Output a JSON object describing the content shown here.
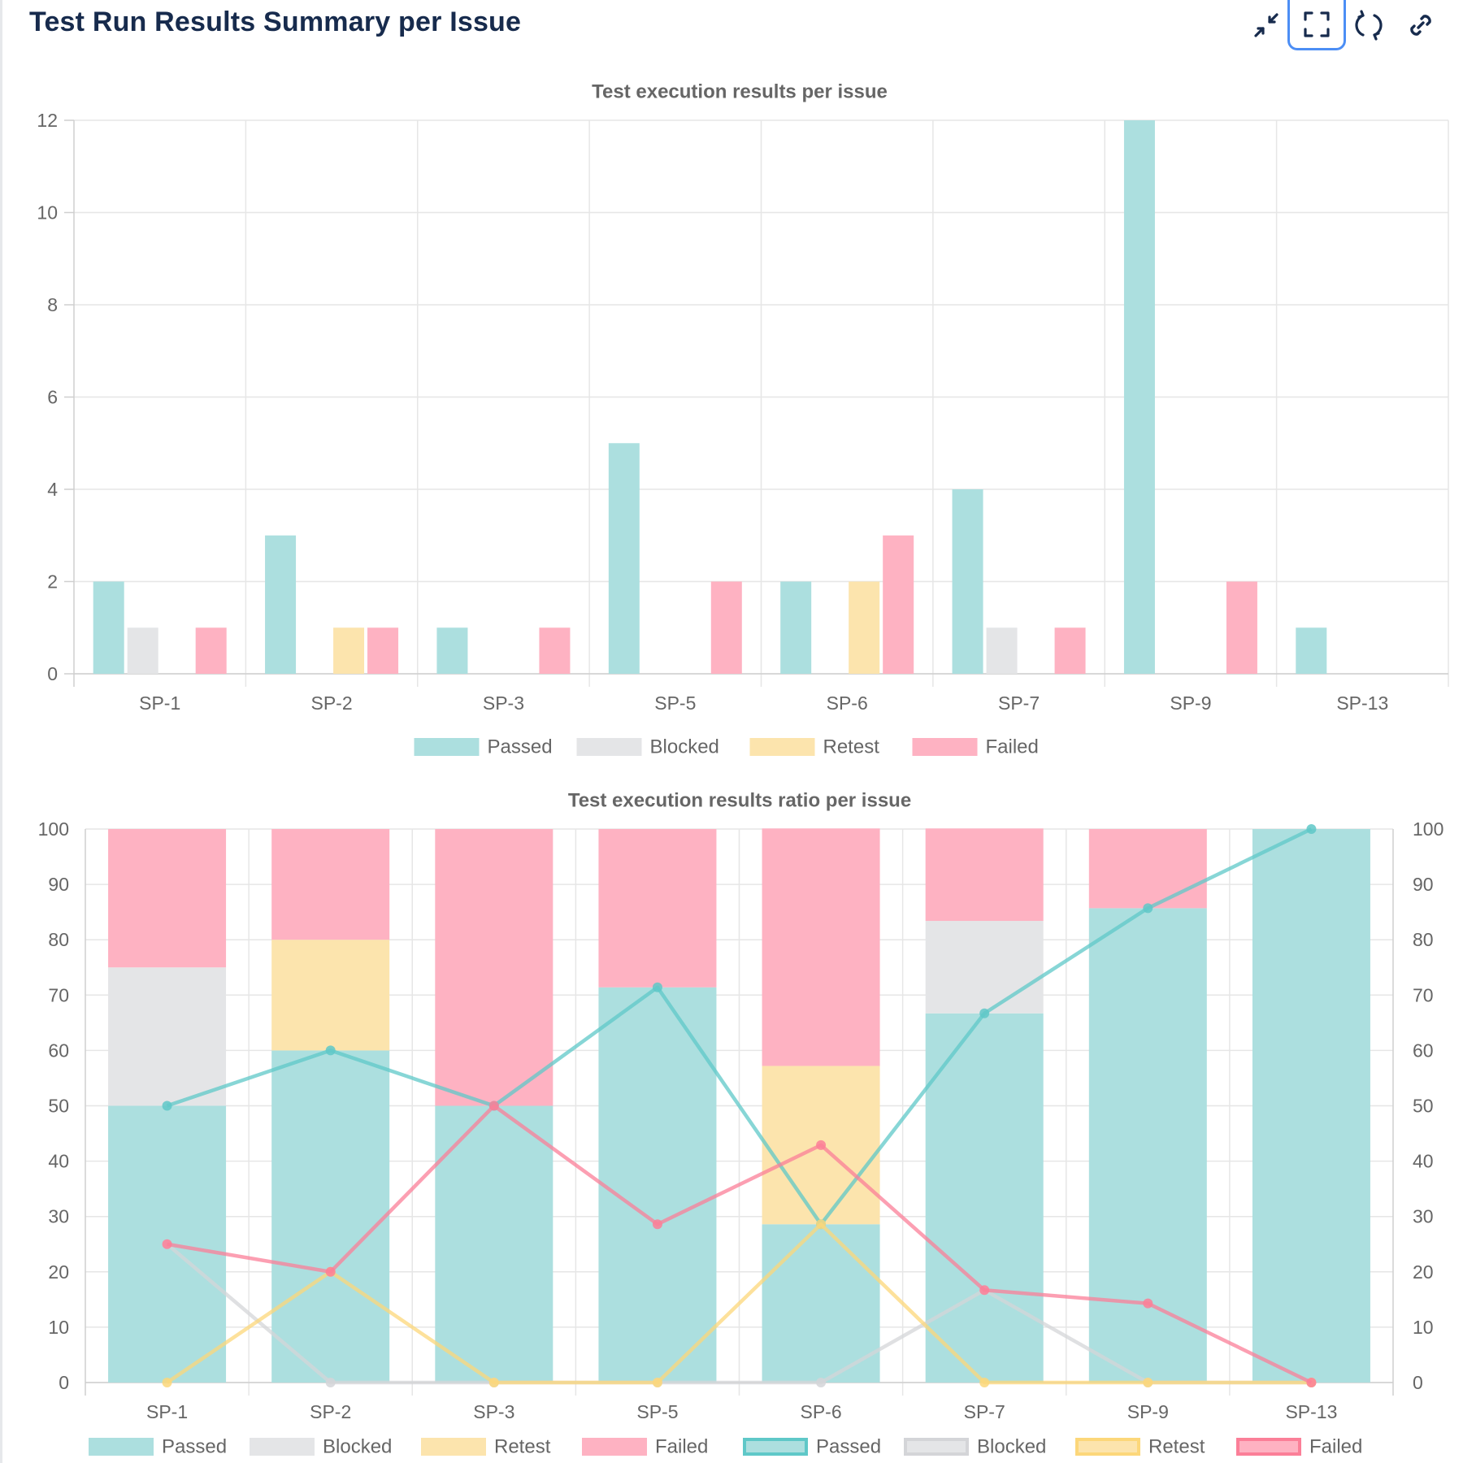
{
  "header": {
    "title": "Test Run Results Summary per Issue",
    "toolbar": [
      {
        "name": "collapse-icon",
        "active": false
      },
      {
        "name": "fullscreen-icon",
        "active": true
      },
      {
        "name": "refresh-icon",
        "active": false
      },
      {
        "name": "link-icon",
        "active": false
      }
    ]
  },
  "colors": {
    "passed_fill": "#acdfdf",
    "blocked_fill": "#e4e5e7",
    "retest_fill": "#fce4ad",
    "failed_fill": "#feb2c2",
    "passed_line": "#5fc8c8",
    "blocked_line": "#d4d5d8",
    "retest_line": "#fcd77a",
    "failed_line": "#fb7f98",
    "grid": "#e6e6e6",
    "axis": "#cfcfcf",
    "text": "#666666"
  },
  "chart_data": [
    {
      "type": "bar",
      "title": "Test execution results per issue",
      "categories": [
        "SP-1",
        "SP-2",
        "SP-3",
        "SP-5",
        "SP-6",
        "SP-7",
        "SP-9",
        "SP-13"
      ],
      "series": [
        {
          "name": "Passed",
          "values": [
            2,
            3,
            1,
            5,
            2,
            4,
            12,
            1
          ]
        },
        {
          "name": "Blocked",
          "values": [
            1,
            0,
            0,
            0,
            0,
            1,
            0,
            0
          ]
        },
        {
          "name": "Retest",
          "values": [
            0,
            1,
            0,
            0,
            2,
            0,
            0,
            0
          ]
        },
        {
          "name": "Failed",
          "values": [
            1,
            1,
            1,
            2,
            3,
            1,
            2,
            0
          ]
        }
      ],
      "ylim": [
        0,
        12
      ],
      "yticks": [
        0,
        2,
        4,
        6,
        8,
        10,
        12
      ],
      "xlabel": "",
      "ylabel": "",
      "grid": true,
      "legend": [
        "Passed",
        "Blocked",
        "Retest",
        "Failed"
      ]
    },
    {
      "type": "bar",
      "stacked": true,
      "title": "Test execution results ratio per issue",
      "categories": [
        "SP-1",
        "SP-2",
        "SP-3",
        "SP-5",
        "SP-6",
        "SP-7",
        "SP-9",
        "SP-13"
      ],
      "bar_series": [
        {
          "name": "Passed",
          "values": [
            50,
            60,
            50,
            71.4,
            28.6,
            66.7,
            85.7,
            100
          ]
        },
        {
          "name": "Blocked",
          "values": [
            25,
            0,
            0,
            0,
            0,
            16.7,
            0,
            0
          ]
        },
        {
          "name": "Retest",
          "values": [
            0,
            20,
            0,
            0,
            28.6,
            0,
            0,
            0
          ]
        },
        {
          "name": "Failed",
          "values": [
            25,
            20,
            50,
            28.6,
            42.9,
            16.7,
            14.3,
            0
          ]
        }
      ],
      "line_series": [
        {
          "name": "Passed",
          "values": [
            50,
            60,
            50,
            71.4,
            28.6,
            66.7,
            85.7,
            100
          ]
        },
        {
          "name": "Blocked",
          "values": [
            25,
            0,
            0,
            0,
            0,
            16.7,
            0,
            0
          ]
        },
        {
          "name": "Retest",
          "values": [
            0,
            20,
            0,
            0,
            28.6,
            0,
            0,
            0
          ]
        },
        {
          "name": "Failed",
          "values": [
            25,
            20,
            50,
            28.6,
            42.9,
            16.7,
            14.3,
            0
          ]
        }
      ],
      "ylim": [
        0,
        100
      ],
      "yticks": [
        0,
        10,
        20,
        30,
        40,
        50,
        60,
        70,
        80,
        90,
        100
      ],
      "y2ticks": [
        0,
        10,
        20,
        30,
        40,
        50,
        60,
        70,
        80,
        90,
        100
      ],
      "xlabel": "",
      "ylabel": "",
      "grid": true,
      "legend": [
        "Passed",
        "Blocked",
        "Retest",
        "Failed",
        "Passed",
        "Blocked",
        "Retest",
        "Failed"
      ]
    }
  ]
}
